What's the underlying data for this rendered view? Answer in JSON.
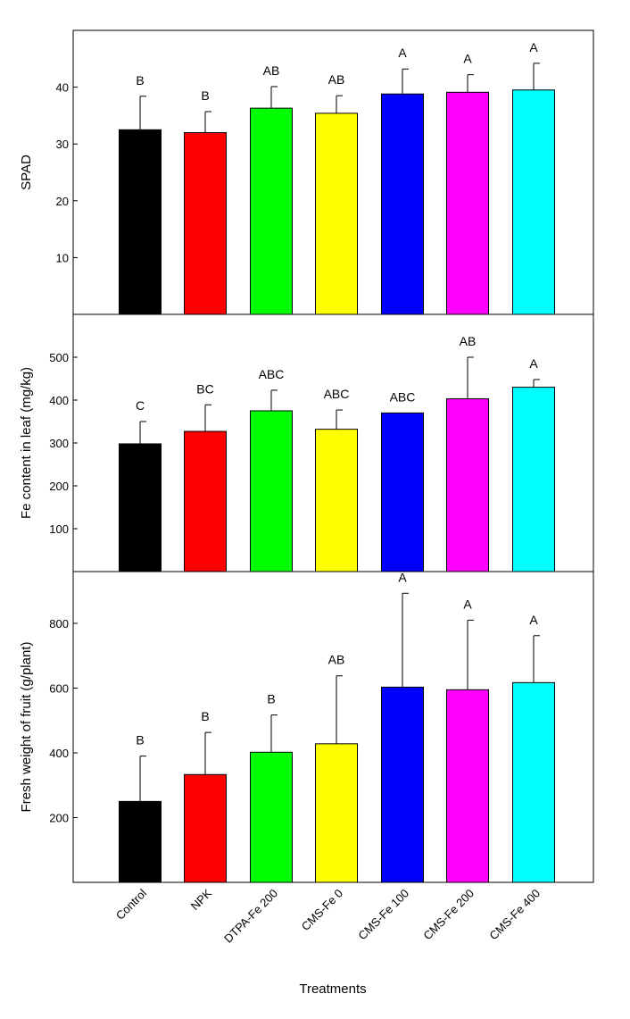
{
  "chart_data": [
    {
      "type": "bar",
      "ylabel": "SPAD",
      "ylim": [
        0,
        50
      ],
      "yticks": [
        10,
        20,
        30,
        40
      ],
      "categories": [
        "Control",
        "NPK",
        "DTPA-Fe 200",
        "CMS-Fe 0",
        "CMS-Fe 100",
        "CMS-Fe 200",
        "CMS-Fe 400"
      ],
      "values": [
        32.5,
        32.0,
        36.3,
        35.4,
        38.8,
        39.1,
        39.5
      ],
      "errors": [
        5.9,
        3.7,
        3.8,
        3.1,
        4.4,
        3.1,
        4.7
      ],
      "letters": [
        "B",
        "B",
        "AB",
        "AB",
        "A",
        "A",
        "A"
      ]
    },
    {
      "type": "bar",
      "ylabel": "Fe content in leaf (mg/kg)",
      "ylim": [
        0,
        600
      ],
      "yticks": [
        100,
        200,
        300,
        400,
        500
      ],
      "categories": [
        "Control",
        "NPK",
        "DTPA-Fe 200",
        "CMS-Fe 0",
        "CMS-Fe 100",
        "CMS-Fe 200",
        "CMS-Fe 400"
      ],
      "values": [
        298,
        327,
        375,
        332,
        370,
        403,
        430
      ],
      "errors": [
        52,
        62,
        48,
        45,
        0,
        97,
        18
      ],
      "letters": [
        "C",
        "BC",
        "ABC",
        "ABC",
        "ABC",
        "AB",
        "A"
      ]
    },
    {
      "type": "bar",
      "ylabel": "Fresh weight of fruit (g/plant)",
      "ylim": [
        0,
        960
      ],
      "yticks": [
        200,
        400,
        600,
        800
      ],
      "categories": [
        "Control",
        "NPK",
        "DTPA-Fe 200",
        "CMS-Fe 0",
        "CMS-Fe 100",
        "CMS-Fe 200",
        "CMS-Fe 400"
      ],
      "values": [
        250,
        333,
        402,
        428,
        603,
        595,
        617
      ],
      "errors": [
        140,
        130,
        115,
        210,
        290,
        215,
        145
      ],
      "letters": [
        "B",
        "B",
        "B",
        "AB",
        "A",
        "A",
        "A"
      ]
    }
  ],
  "categories": [
    "Control",
    "NPK",
    "DTPA-Fe 200",
    "CMS-Fe 0",
    "CMS-Fe 100",
    "CMS-Fe 200",
    "CMS-Fe 400"
  ],
  "xlabel": "Treatments",
  "bar_colors": [
    "#000000",
    "#ff0000",
    "#00ff00",
    "#ffff00",
    "#0000ff",
    "#ff00ff",
    "#00ffff"
  ]
}
